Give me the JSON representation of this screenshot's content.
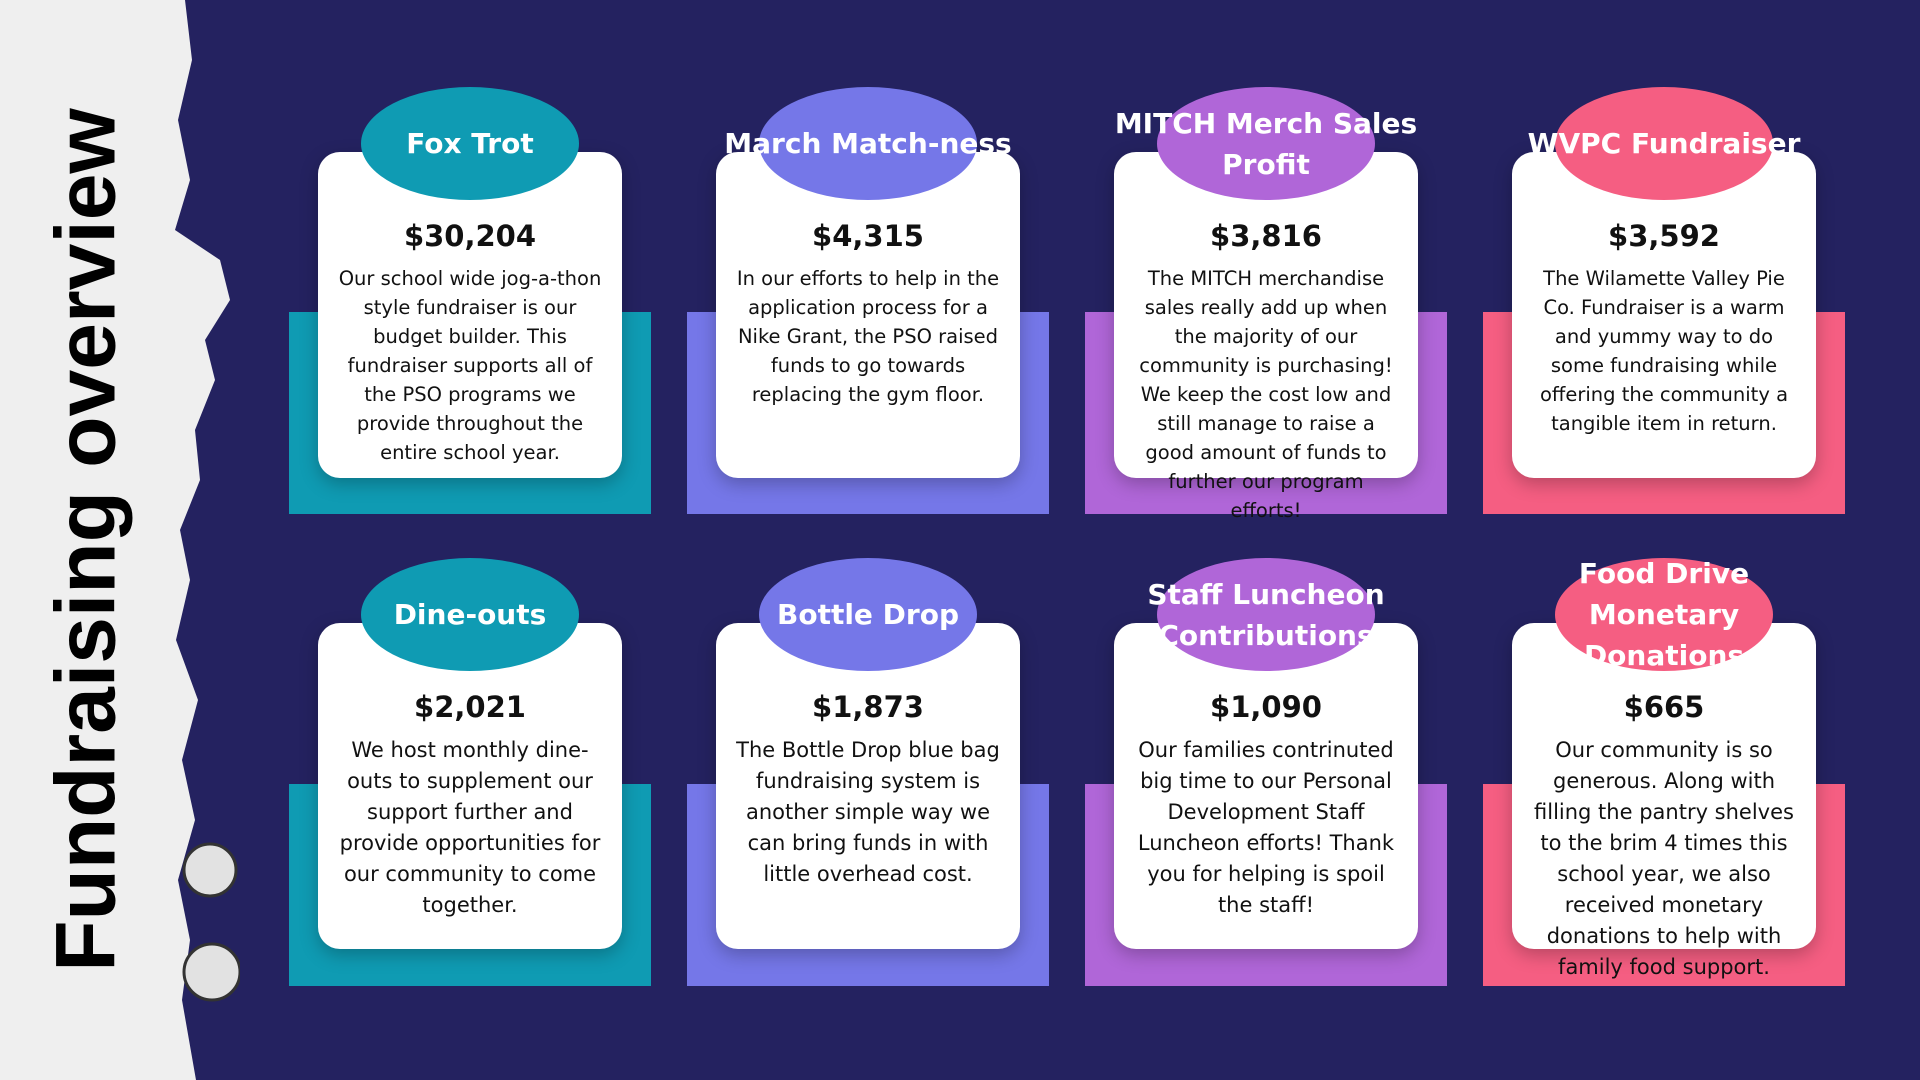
{
  "title": "Fundraising overview",
  "cards": [
    {
      "title": "Fox Trot",
      "amount": "$30,204",
      "description": "Our school wide jog-a-thon style fundraiser is our budget builder. This fundraiser supports all of the PSO programs we provide throughout the entire school year."
    },
    {
      "title": "March Match-ness",
      "amount": "$4,315",
      "description": "In our efforts to help in the application process for a Nike Grant, the PSO raised funds to go towards replacing the gym floor."
    },
    {
      "title": "MITCH Merch Sales Profit",
      "amount": "$3,816",
      "description": "The MITCH merchandise sales really add up when the majority of our community is purchasing! We keep the cost low and still manage to raise a good amount of funds to further our program efforts!"
    },
    {
      "title": "WVPC Fundraiser",
      "amount": "$3,592",
      "description": "The Wilamette Valley Pie Co. Fundraiser is a warm and yummy way to do some fundraising while offering the community a tangible item in return."
    },
    {
      "title": "Dine-outs",
      "amount": "$2,021",
      "description": "We host monthly dine-outs to supplement our support further and provide opportunities for our community to come together."
    },
    {
      "title": "Bottle Drop",
      "amount": "$1,873",
      "description": "The Bottle Drop blue bag fundraising system is another simple way we can bring funds in with little overhead cost."
    },
    {
      "title": "Staff Luncheon Contributions",
      "amount": "$1,090",
      "description": "Our families contrinuted big time to our Personal Development Staff Luncheon efforts! Thank you for helping is spoil the staff!"
    },
    {
      "title": "Food Drive Monetary Donations",
      "amount": "$665",
      "description": "Our community is so generous. Along with filling the pantry shelves to the brim 4 times this school year, we also received monetary donations to help with family food support."
    }
  ]
}
